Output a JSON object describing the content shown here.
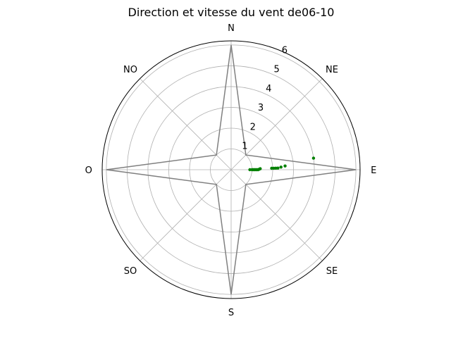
{
  "chart_data": {
    "type": "scatter",
    "projection": "polar",
    "title": "Direction et vitesse du vent de06-10",
    "direction_labels": [
      "N",
      "NE",
      "E",
      "SE",
      "S",
      "SO",
      "O",
      "NO"
    ],
    "r_ticks": [
      1,
      2,
      3,
      4,
      5,
      6
    ],
    "rlim": [
      0,
      6.2
    ],
    "grid": true,
    "rose": {
      "color": "#808080",
      "points": [
        {
          "angle": 0,
          "r": 6.0
        },
        {
          "angle": 45,
          "r": 1.0
        },
        {
          "angle": 90,
          "r": 6.0
        },
        {
          "angle": 135,
          "r": 1.0
        },
        {
          "angle": 180,
          "r": 6.0
        },
        {
          "angle": 225,
          "r": 1.0
        },
        {
          "angle": 270,
          "r": 6.0
        },
        {
          "angle": 315,
          "r": 1.0
        }
      ]
    },
    "series": [
      {
        "color": "#008000",
        "points": [
          {
            "angle": 90,
            "r": 0.9
          },
          {
            "angle": 90,
            "r": 1.0
          },
          {
            "angle": 90,
            "r": 1.05
          },
          {
            "angle": 90,
            "r": 1.1
          },
          {
            "angle": 90,
            "r": 1.15
          },
          {
            "angle": 90,
            "r": 1.2
          },
          {
            "angle": 90,
            "r": 1.25
          },
          {
            "angle": 90,
            "r": 1.3
          },
          {
            "angle": 89,
            "r": 1.35
          },
          {
            "angle": 88,
            "r": 1.4
          },
          {
            "angle": 88,
            "r": 1.95
          },
          {
            "angle": 88,
            "r": 2.05
          },
          {
            "angle": 88,
            "r": 2.15
          },
          {
            "angle": 88,
            "r": 2.25
          },
          {
            "angle": 87,
            "r": 2.4
          },
          {
            "angle": 86,
            "r": 2.6
          },
          {
            "angle": 82,
            "r": 4.0
          }
        ]
      }
    ]
  }
}
